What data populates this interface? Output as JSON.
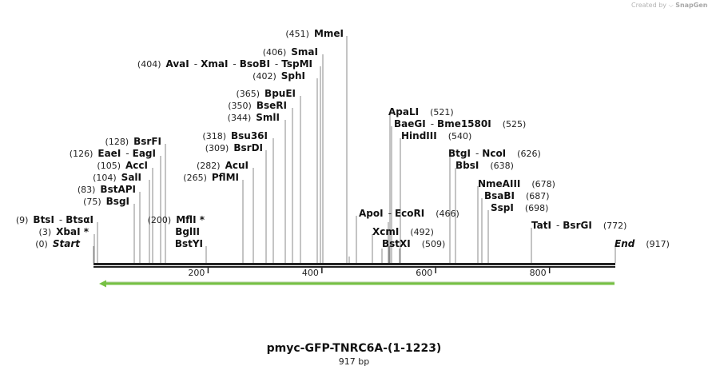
{
  "credit": {
    "prefix": "Created by",
    "brand": "SnapGene"
  },
  "title": "pmyc-GFP-TNRC6A-(1-1223)",
  "length_label": "917 bp",
  "sequence_length": 917,
  "ruler_ticks": [
    {
      "value": 200,
      "label": "200"
    },
    {
      "value": 400,
      "label": "400"
    },
    {
      "value": 600,
      "label": "600"
    },
    {
      "value": 800,
      "label": "800"
    }
  ],
  "feature_arrow": {
    "start": 10,
    "end": 917,
    "direction": "reverse",
    "color": "#77c144"
  },
  "label_rows": [
    {
      "name": "MmeI",
      "parts": [
        [
          "(451)",
          "num"
        ],
        [
          "MmeI",
          "name"
        ]
      ],
      "pos": 451
    },
    {
      "name": "SmaI",
      "parts": [
        [
          "(406)",
          "num"
        ],
        [
          "SmaI",
          "name"
        ]
      ],
      "pos": 406
    },
    {
      "name": "AvaI",
      "parts": [
        [
          "(404)",
          "num"
        ],
        [
          "AvaI",
          "name"
        ],
        [
          "-",
          "dash"
        ],
        [
          "XmaI",
          "name"
        ],
        [
          "-",
          "dash"
        ],
        [
          "BsoBI",
          "name"
        ],
        [
          "-",
          "dash"
        ],
        [
          "TspMI",
          "name"
        ]
      ],
      "pos": 404
    },
    {
      "name": "SphI",
      "parts": [
        [
          "(402)",
          "num"
        ],
        [
          "SphI",
          "name"
        ]
      ],
      "pos": 402
    },
    {
      "name": "BpuEI",
      "parts": [
        [
          "(365)",
          "num"
        ],
        [
          "BpuEI",
          "name"
        ]
      ],
      "pos": 365
    },
    {
      "name": "BseRI",
      "parts": [
        [
          "(350)",
          "num"
        ],
        [
          "BseRI",
          "name"
        ]
      ],
      "pos": 350
    },
    {
      "name": "SmlI",
      "parts": [
        [
          "(344)",
          "num"
        ],
        [
          "SmlI",
          "name"
        ]
      ],
      "pos": 344
    },
    {
      "name": "Bsu36I",
      "parts": [
        [
          "(318)",
          "num"
        ],
        [
          "Bsu36I",
          "name"
        ]
      ],
      "pos": 318
    },
    {
      "name": "BsrDI",
      "parts": [
        [
          "(309)",
          "num"
        ],
        [
          "BsrDI",
          "name"
        ]
      ],
      "pos": 309
    },
    {
      "name": "AcuI",
      "parts": [
        [
          "(282)",
          "num"
        ],
        [
          "AcuI",
          "name"
        ]
      ],
      "pos": 282
    },
    {
      "name": "PflMI",
      "parts": [
        [
          "(265)",
          "num"
        ],
        [
          "PflMI",
          "name"
        ]
      ],
      "pos": 265
    },
    {
      "name": "BsrFI",
      "parts": [
        [
          "(128)",
          "num"
        ],
        [
          "BsrFI",
          "name"
        ]
      ],
      "pos": 128
    },
    {
      "name": "EaeI",
      "parts": [
        [
          "(126)",
          "num"
        ],
        [
          "EaeI",
          "name"
        ],
        [
          "-",
          "dash"
        ],
        [
          "EagI",
          "name"
        ]
      ],
      "pos": 126
    },
    {
      "name": "AccI",
      "parts": [
        [
          "(105)",
          "num"
        ],
        [
          "AccI",
          "name"
        ]
      ],
      "pos": 105
    },
    {
      "name": "SalI",
      "parts": [
        [
          "(104)",
          "num"
        ],
        [
          "SalI",
          "name"
        ]
      ],
      "pos": 104
    },
    {
      "name": "BstAPI",
      "parts": [
        [
          "(83)",
          "num"
        ],
        [
          "BstAPI",
          "name"
        ]
      ],
      "pos": 83
    },
    {
      "name": "BsgI",
      "parts": [
        [
          "(75)",
          "num"
        ],
        [
          "BsgI",
          "name"
        ]
      ],
      "pos": 75
    },
    {
      "name": "BtsI",
      "parts": [
        [
          "(9)",
          "num"
        ],
        [
          "BtsI",
          "name"
        ],
        [
          "-",
          "dash"
        ],
        [
          "BtsαI",
          "name"
        ]
      ],
      "pos": 9
    },
    {
      "name": "XbaI",
      "parts": [
        [
          "(3)",
          "num"
        ],
        [
          "XbaI *",
          "name"
        ]
      ],
      "pos": 3
    },
    {
      "name": "Start",
      "parts": [
        [
          "(0)",
          "num"
        ],
        [
          "Start",
          "ital"
        ]
      ],
      "pos": 0
    },
    {
      "name": "MflI",
      "parts": [
        [
          "(200)",
          "num"
        ],
        [
          "MflI *",
          "name"
        ]
      ],
      "pos": 200
    },
    {
      "name": "BglII",
      "parts": [
        [
          "BglII",
          "name"
        ]
      ],
      "pos": 200
    },
    {
      "name": "BstYI",
      "parts": [
        [
          "BstYI",
          "name"
        ]
      ],
      "pos": 200
    },
    {
      "name": "ApaLI",
      "parts": [
        [
          "ApaLI",
          "name"
        ],
        [
          "(521)",
          "num"
        ]
      ],
      "pos": 521
    },
    {
      "name": "BaeGI",
      "parts": [
        [
          "BaeGI",
          "name"
        ],
        [
          "-",
          "dash"
        ],
        [
          "Bme1580I",
          "name"
        ],
        [
          "(525)",
          "num"
        ]
      ],
      "pos": 525
    },
    {
      "name": "HindIII",
      "parts": [
        [
          "HindIII",
          "name"
        ],
        [
          "(540)",
          "num"
        ]
      ],
      "pos": 540
    },
    {
      "name": "ApoI",
      "parts": [
        [
          "ApoI",
          "name"
        ],
        [
          "-",
          "dash"
        ],
        [
          "EcoRI",
          "name"
        ],
        [
          "(466)",
          "num"
        ]
      ],
      "pos": 466
    },
    {
      "name": "XcmI",
      "parts": [
        [
          "XcmI",
          "name"
        ],
        [
          "(492)",
          "num"
        ]
      ],
      "pos": 492
    },
    {
      "name": "BstXI",
      "parts": [
        [
          "BstXI",
          "name"
        ],
        [
          "(509)",
          "num"
        ]
      ],
      "pos": 509
    },
    {
      "name": "BtgI",
      "parts": [
        [
          "BtgI",
          "name"
        ],
        [
          "-",
          "dash"
        ],
        [
          "NcoI",
          "name"
        ],
        [
          "(626)",
          "num"
        ]
      ],
      "pos": 626
    },
    {
      "name": "BbsI",
      "parts": [
        [
          "BbsI",
          "name"
        ],
        [
          "(638)",
          "num"
        ]
      ],
      "pos": 638
    },
    {
      "name": "NmeAIII",
      "parts": [
        [
          "NmeAIII",
          "name"
        ],
        [
          "(678)",
          "num"
        ]
      ],
      "pos": 678
    },
    {
      "name": "BsaBI",
      "parts": [
        [
          "BsaBI",
          "name"
        ],
        [
          "(687)",
          "num"
        ]
      ],
      "pos": 687
    },
    {
      "name": "SspI",
      "parts": [
        [
          "SspI",
          "name"
        ],
        [
          "(698)",
          "num"
        ]
      ],
      "pos": 698
    },
    {
      "name": "TatI",
      "parts": [
        [
          "TatI",
          "name"
        ],
        [
          "-",
          "dash"
        ],
        [
          "BsrGI",
          "name"
        ],
        [
          "(772)",
          "num"
        ]
      ],
      "pos": 772
    },
    {
      "name": "End",
      "parts": [
        [
          "End",
          "ital"
        ],
        [
          "(917)",
          "num"
        ]
      ],
      "pos": 917
    }
  ]
}
